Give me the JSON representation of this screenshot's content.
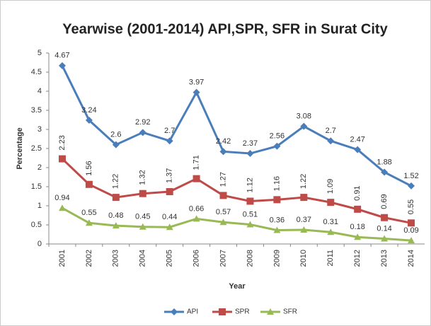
{
  "chart_data": {
    "type": "line",
    "title": "Yearwise (2001-2014) API,SPR, SFR in Surat City",
    "x_label": "Year",
    "y_label": "Percentage",
    "categories": [
      "2001",
      "2002",
      "2003",
      "2004",
      "2005",
      "2006",
      "2007",
      "2008",
      "2009",
      "2010",
      "2011",
      "2012",
      "2013",
      "2014"
    ],
    "series": [
      {
        "name": "API",
        "color": "#4a7ebb",
        "marker": "diamond",
        "values": [
          4.67,
          3.24,
          2.6,
          2.92,
          2.7,
          3.97,
          2.42,
          2.37,
          2.56,
          3.08,
          2.7,
          2.47,
          1.88,
          1.52
        ]
      },
      {
        "name": "SPR",
        "color": "#be4b48",
        "marker": "square",
        "values": [
          2.23,
          1.56,
          1.22,
          1.32,
          1.37,
          1.71,
          1.27,
          1.12,
          1.16,
          1.22,
          1.09,
          0.91,
          0.69,
          0.55
        ]
      },
      {
        "name": "SFR",
        "color": "#98b954",
        "marker": "triangle",
        "values": [
          0.94,
          0.55,
          0.48,
          0.45,
          0.44,
          0.66,
          0.57,
          0.51,
          0.36,
          0.37,
          0.31,
          0.18,
          0.14,
          0.09
        ]
      }
    ],
    "ylim": [
      0,
      5
    ],
    "yticks": [
      0,
      0.5,
      1,
      1.5,
      2,
      2.5,
      3,
      3.5,
      4,
      4.5,
      5
    ],
    "grid": false,
    "legend": "bottom"
  }
}
